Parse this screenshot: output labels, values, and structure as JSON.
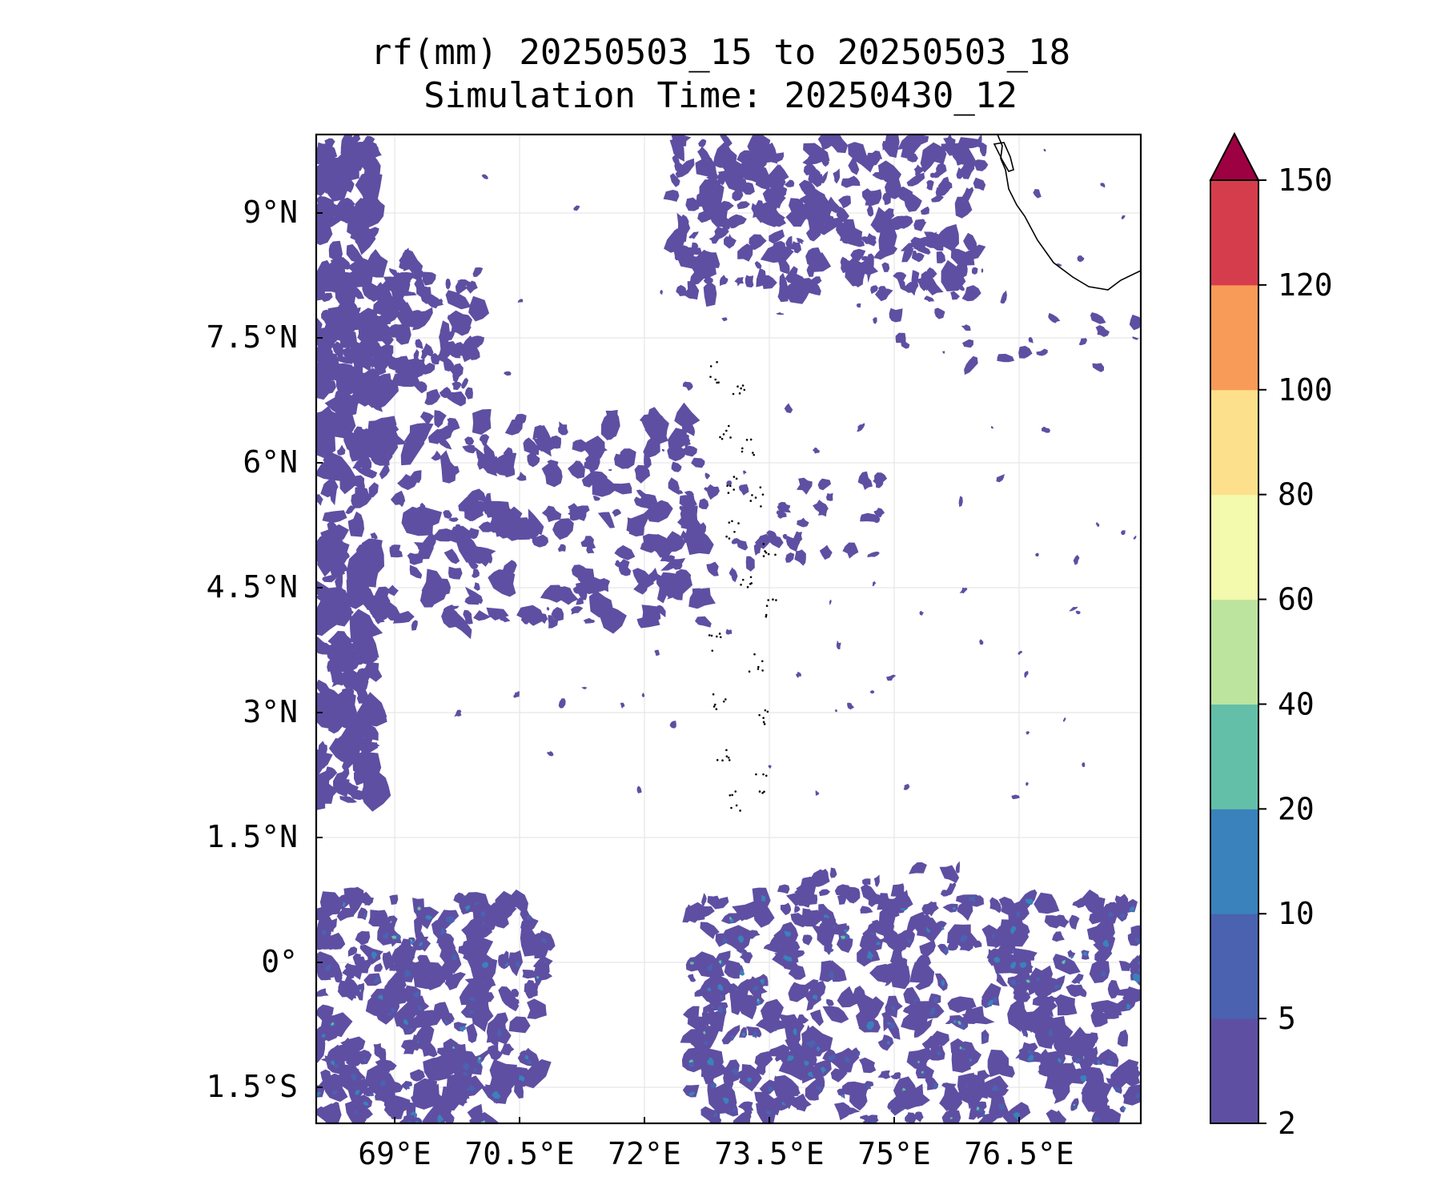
{
  "title_line1": "rf(mm) 20250503_15 to 20250503_18",
  "title_line2": "Simulation Time: 20250430_12",
  "lon_ticks": [
    "69°E",
    "70.5°E",
    "72°E",
    "73.5°E",
    "75°E",
    "76.5°E"
  ],
  "lat_ticks": [
    "9°N",
    "7.5°N",
    "6°N",
    "4.5°N",
    "3°N",
    "1.5°N",
    "0°",
    "1.5°S"
  ],
  "colorbar": {
    "levels": [
      "2",
      "5",
      "10",
      "20",
      "40",
      "60",
      "80",
      "100",
      "120",
      "150"
    ],
    "colors": [
      "#5e4fa2",
      "#4a62b0",
      "#3a82bc",
      "#63bfa8",
      "#bde49e",
      "#f3f9ad",
      "#fde08b",
      "#f99b58",
      "#d63d4c",
      "#9e0142"
    ],
    "extend": "max"
  },
  "map": {
    "lon_range": [
      68.0,
      78.0
    ],
    "lat_range": [
      -2.0,
      9.9
    ],
    "land_outline_color": "#000000",
    "rain_primary_color": "#5e4fa2"
  }
}
